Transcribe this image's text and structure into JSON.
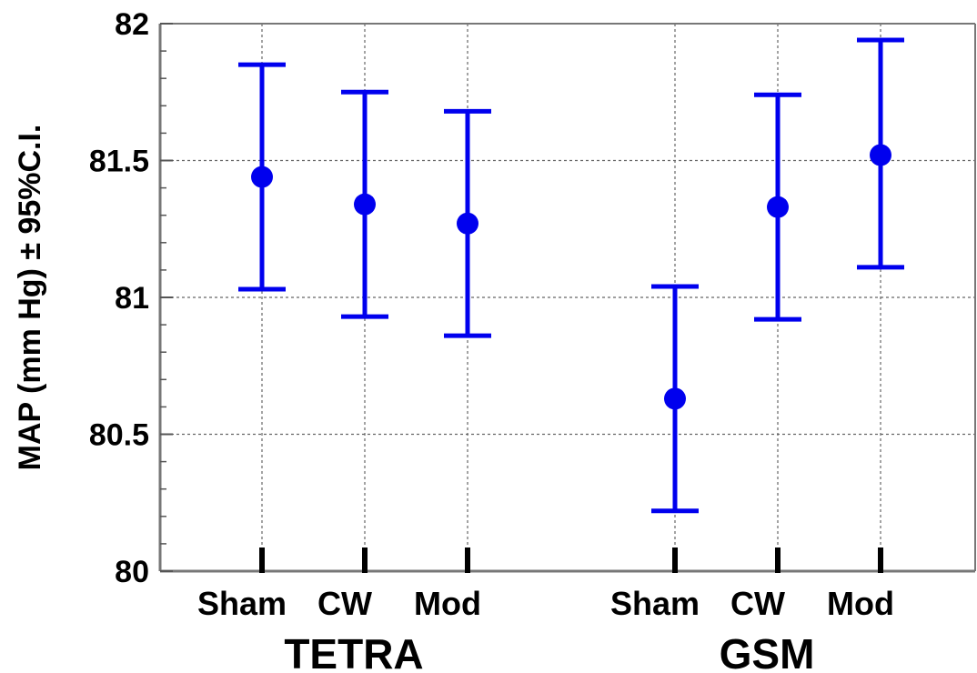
{
  "chart_data": {
    "type": "scatter",
    "title": "",
    "ylabel": "MAP (mm Hg) ± 95%C.I.",
    "ylim": [
      80,
      82
    ],
    "yticks": [
      "80",
      "80.5",
      "81",
      "81.5",
      "82"
    ],
    "grid": true,
    "groups": [
      {
        "name": "TETRA",
        "categories": [
          "Sham",
          "CW",
          "Mod"
        ]
      },
      {
        "name": "GSM",
        "categories": [
          "Sham",
          "CW",
          "Mod"
        ]
      }
    ],
    "series": [
      {
        "color": "#0000ee",
        "points": [
          {
            "group": "TETRA",
            "category": "Sham",
            "mean": 81.44,
            "lower": 81.03,
            "upper": 81.85
          },
          {
            "group": "TETRA",
            "category": "CW",
            "mean": 81.34,
            "lower": 80.93,
            "upper": 81.75
          },
          {
            "group": "TETRA",
            "category": "Mod",
            "mean": 81.27,
            "lower": 80.86,
            "upper": 81.68
          },
          {
            "group": "GSM",
            "category": "Sham",
            "mean": 80.63,
            "lower": 80.22,
            "upper": 81.04
          },
          {
            "group": "GSM",
            "category": "CW",
            "mean": 81.33,
            "lower": 80.92,
            "upper": 81.74
          },
          {
            "group": "GSM",
            "category": "Mod",
            "mean": 81.52,
            "lower": 81.11,
            "upper": 81.94
          }
        ]
      }
    ]
  }
}
